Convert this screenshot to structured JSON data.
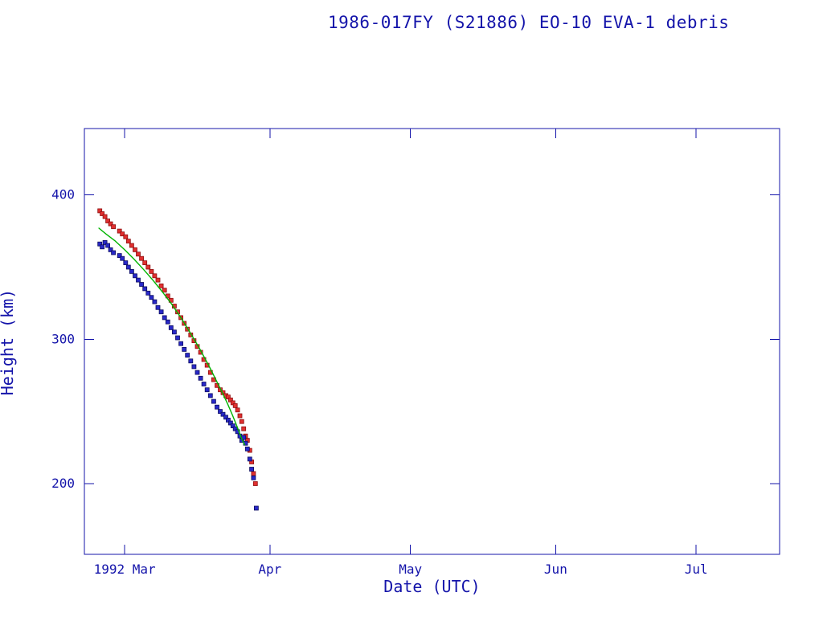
{
  "page": {
    "title": "1986-017FY (S21886) EO-10 EVA-1 debris"
  },
  "chart_data": {
    "type": "scatter",
    "title": "1986-017FY (S21886) EO-10 EVA-1 debris",
    "xlabel": "Date (UTC)",
    "ylabel": "Height (km)",
    "grid": false,
    "legend": "none",
    "colors": {
      "text": "#1414aa",
      "axis": "#1414aa",
      "background": "#ffffff",
      "apogee": "#e03030",
      "apogee_edge": "#8f1010",
      "perigee": "#2828c8",
      "perigee_edge": "#0d0d60",
      "fit_line": "#00b400"
    },
    "x_axis": {
      "unit": "days since 1992-03-01 00:00 UTC",
      "min": -8.6,
      "max": 139.8,
      "ticks": [
        {
          "value": 0,
          "label": "1992 Mar"
        },
        {
          "value": 31,
          "label": "Apr"
        },
        {
          "value": 61,
          "label": "May"
        },
        {
          "value": 92,
          "label": "Jun"
        },
        {
          "value": 122,
          "label": "Jul"
        }
      ]
    },
    "y_axis": {
      "unit": "km",
      "min": 151,
      "max": 446,
      "ticks": [
        {
          "value": 200,
          "label": "200"
        },
        {
          "value": 300,
          "label": "300"
        },
        {
          "value": 400,
          "label": "400"
        }
      ]
    },
    "series": [
      {
        "id": "apogee",
        "name": "Apogee height",
        "type": "scatter",
        "marker": "filled-square",
        "points": [
          [
            -5.3,
            389
          ],
          [
            -4.8,
            387
          ],
          [
            -4.2,
            385
          ],
          [
            -3.6,
            382
          ],
          [
            -3.0,
            380
          ],
          [
            -2.4,
            378
          ],
          [
            -1.1,
            375
          ],
          [
            -0.5,
            373
          ],
          [
            0.2,
            371
          ],
          [
            0.8,
            368
          ],
          [
            1.5,
            365
          ],
          [
            2.2,
            362
          ],
          [
            2.9,
            359
          ],
          [
            3.6,
            356
          ],
          [
            4.3,
            353
          ],
          [
            5.0,
            350
          ],
          [
            5.7,
            347
          ],
          [
            6.4,
            344
          ],
          [
            7.1,
            341
          ],
          [
            7.8,
            337
          ],
          [
            8.5,
            334
          ],
          [
            9.2,
            330
          ],
          [
            9.9,
            327
          ],
          [
            10.6,
            323
          ],
          [
            11.3,
            319
          ],
          [
            12.0,
            315
          ],
          [
            12.7,
            311
          ],
          [
            13.4,
            307
          ],
          [
            14.1,
            303
          ],
          [
            14.8,
            299
          ],
          [
            15.5,
            295
          ],
          [
            16.2,
            291
          ],
          [
            16.9,
            286
          ],
          [
            17.6,
            282
          ],
          [
            18.3,
            277
          ],
          [
            19.0,
            272
          ],
          [
            19.7,
            268
          ],
          [
            20.4,
            265
          ],
          [
            21.0,
            263
          ],
          [
            21.6,
            261
          ],
          [
            22.1,
            260
          ],
          [
            22.6,
            258
          ],
          [
            23.1,
            256
          ],
          [
            23.6,
            254
          ],
          [
            24.1,
            251
          ],
          [
            24.6,
            247
          ],
          [
            25.0,
            243
          ],
          [
            25.4,
            238
          ],
          [
            25.8,
            233
          ],
          [
            26.2,
            230
          ],
          [
            26.7,
            223
          ],
          [
            27.1,
            215
          ],
          [
            27.5,
            207
          ],
          [
            27.9,
            200
          ]
        ]
      },
      {
        "id": "perigee",
        "name": "Perigee height",
        "type": "scatter",
        "marker": "filled-square",
        "points": [
          [
            -5.3,
            366
          ],
          [
            -4.8,
            364
          ],
          [
            -4.2,
            367
          ],
          [
            -3.6,
            365
          ],
          [
            -3.0,
            362
          ],
          [
            -2.4,
            360
          ],
          [
            -1.1,
            358
          ],
          [
            -0.5,
            356
          ],
          [
            0.2,
            353
          ],
          [
            0.8,
            350
          ],
          [
            1.5,
            347
          ],
          [
            2.2,
            344
          ],
          [
            2.9,
            341
          ],
          [
            3.6,
            338
          ],
          [
            4.3,
            335
          ],
          [
            5.0,
            332
          ],
          [
            5.7,
            329
          ],
          [
            6.4,
            326
          ],
          [
            7.1,
            322
          ],
          [
            7.8,
            319
          ],
          [
            8.5,
            315
          ],
          [
            9.2,
            312
          ],
          [
            9.9,
            308
          ],
          [
            10.6,
            305
          ],
          [
            11.3,
            301
          ],
          [
            12.0,
            297
          ],
          [
            12.7,
            293
          ],
          [
            13.4,
            289
          ],
          [
            14.1,
            285
          ],
          [
            14.8,
            281
          ],
          [
            15.5,
            277
          ],
          [
            16.2,
            273
          ],
          [
            16.9,
            269
          ],
          [
            17.6,
            265
          ],
          [
            18.3,
            261
          ],
          [
            19.0,
            257
          ],
          [
            19.7,
            253
          ],
          [
            20.4,
            250
          ],
          [
            21.0,
            248
          ],
          [
            21.6,
            246
          ],
          [
            22.1,
            244
          ],
          [
            22.6,
            242
          ],
          [
            23.1,
            240
          ],
          [
            23.6,
            238
          ],
          [
            24.1,
            236
          ],
          [
            24.6,
            233
          ],
          [
            25.0,
            230
          ],
          [
            25.4,
            232
          ],
          [
            25.8,
            228
          ],
          [
            26.2,
            224
          ],
          [
            26.7,
            217
          ],
          [
            27.1,
            210
          ],
          [
            27.5,
            204
          ],
          [
            28.1,
            183
          ]
        ]
      },
      {
        "id": "fit",
        "name": "Mean height fit",
        "type": "line",
        "points": [
          [
            -5.5,
            377
          ],
          [
            -4,
            373
          ],
          [
            -2,
            368
          ],
          [
            0,
            362
          ],
          [
            2,
            355.5
          ],
          [
            4,
            348.5
          ],
          [
            6,
            341
          ],
          [
            8,
            333
          ],
          [
            10,
            324.5
          ],
          [
            12,
            315
          ],
          [
            14,
            304.5
          ],
          [
            16,
            293.5
          ],
          [
            18,
            281.5
          ],
          [
            19,
            275
          ],
          [
            20,
            268.5
          ],
          [
            21,
            262
          ],
          [
            22,
            255
          ],
          [
            23,
            247.5
          ],
          [
            24,
            239.5
          ],
          [
            25,
            231
          ],
          [
            25.6,
            227
          ]
        ]
      }
    ]
  }
}
